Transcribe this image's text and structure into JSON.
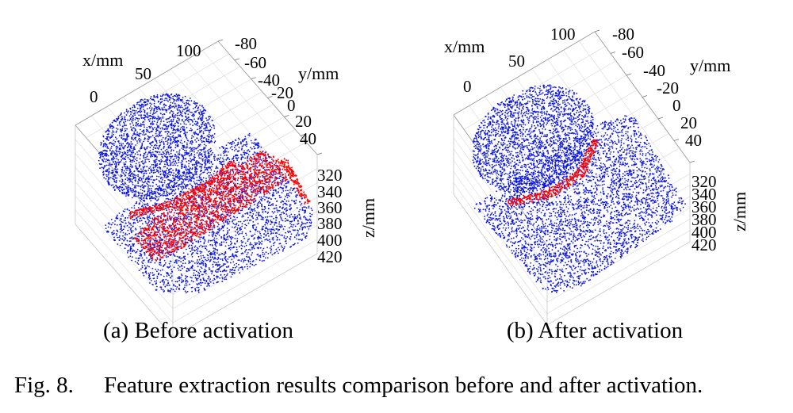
{
  "panels": [
    {
      "caption": "(a) Before activation",
      "x_axis": {
        "label": "x/mm",
        "ticks": [
          "0",
          "50",
          "100"
        ]
      },
      "y_axis": {
        "label": "y/mm",
        "ticks": [
          "-80",
          "-60",
          "-40",
          "-20",
          "0",
          "20",
          "40"
        ]
      },
      "z_axis": {
        "label": "z/mm",
        "ticks": [
          "320",
          "340",
          "360",
          "380",
          "400",
          "420"
        ]
      },
      "colors": {
        "points": "#0a14e6",
        "extracted_feature": "#ff0000"
      }
    },
    {
      "caption": "(b) After activation",
      "x_axis": {
        "label": "x/mm",
        "ticks": [
          "0",
          "50",
          "100"
        ]
      },
      "y_axis": {
        "label": "y/mm",
        "ticks": [
          "-80",
          "-60",
          "-40",
          "-20",
          "0",
          "20",
          "40"
        ]
      },
      "z_axis": {
        "label": "z/mm",
        "ticks": [
          "320",
          "340",
          "360",
          "380",
          "400",
          "420"
        ]
      },
      "colors": {
        "points": "#0a14e6",
        "extracted_feature": "#ff0000"
      }
    }
  ],
  "figure_caption": {
    "number": "Fig. 8.",
    "text": "Feature extraction results comparison before and after activation."
  }
}
